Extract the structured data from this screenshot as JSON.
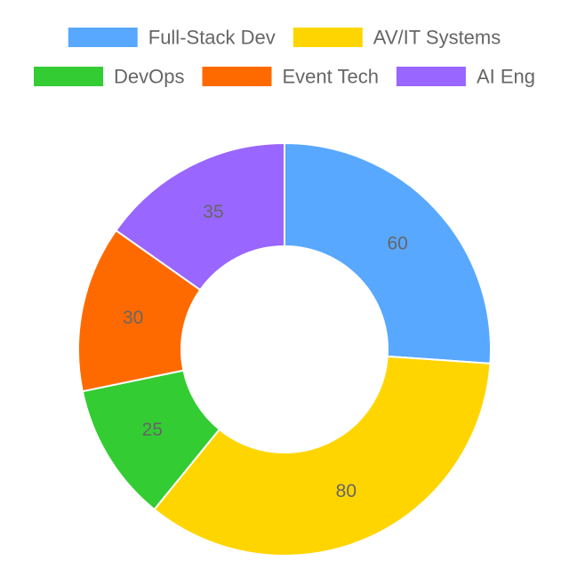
{
  "chart_data": {
    "type": "pie",
    "variant": "doughnut",
    "categories": [
      "Full-Stack Dev",
      "AV/IT Systems",
      "DevOps",
      "Event Tech",
      "AI Eng"
    ],
    "values": [
      60,
      80,
      25,
      30,
      35
    ],
    "colors": [
      "#58A8FF",
      "#FFD500",
      "#33CC33",
      "#FF6A00",
      "#9966FF"
    ],
    "value_labels_shown": true,
    "legend_placement": "top",
    "start_angle": "top",
    "direction": "clockwise"
  }
}
